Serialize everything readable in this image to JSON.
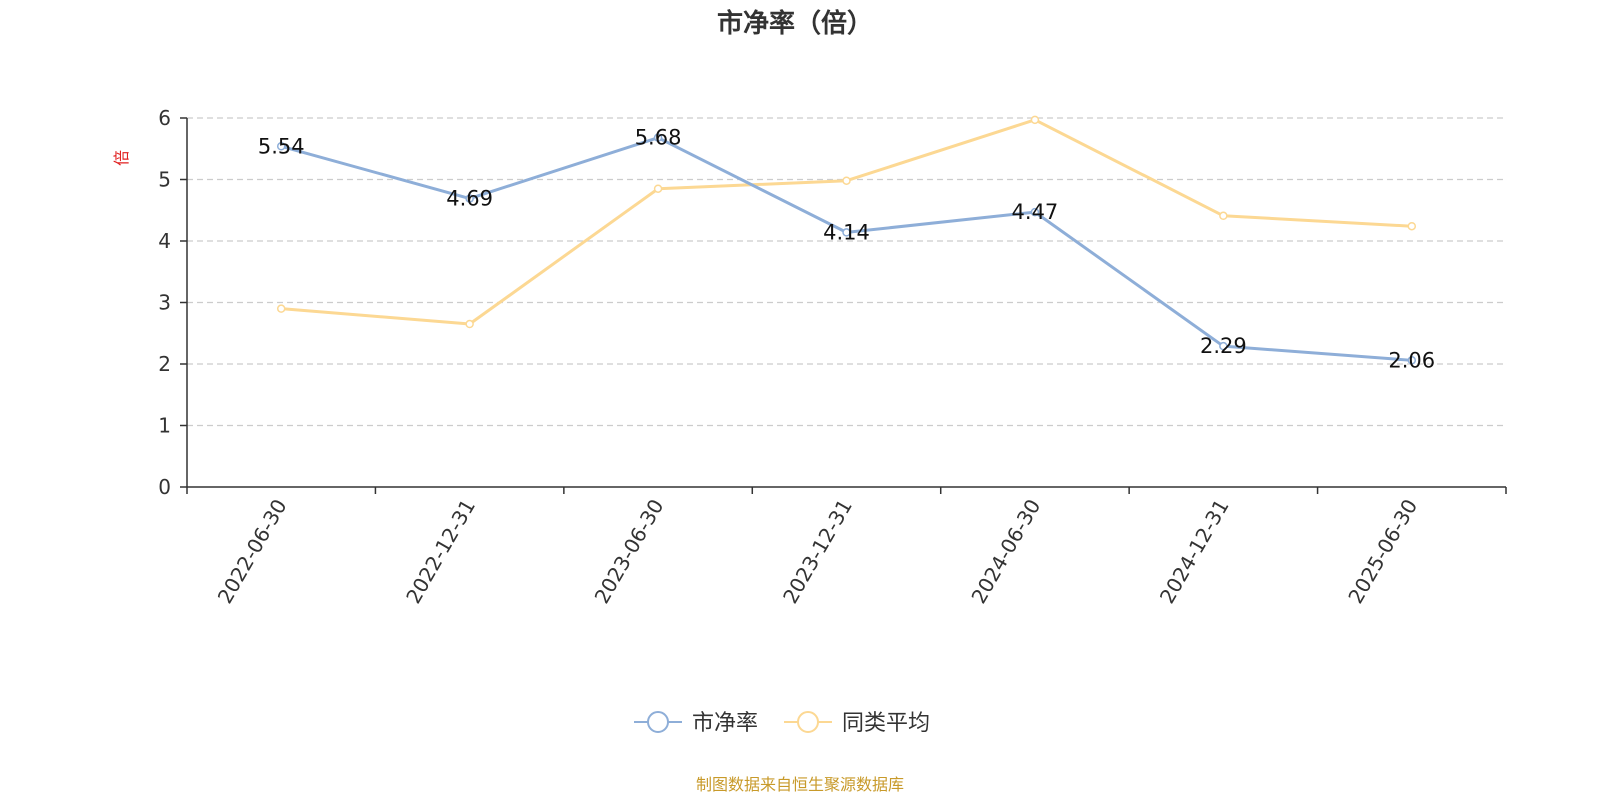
{
  "chart_data": {
    "type": "line",
    "title": "市净率（倍）",
    "ylabel": "倍",
    "ylim": [
      0,
      6
    ],
    "yticks": [
      0,
      1,
      2,
      3,
      4,
      5,
      6
    ],
    "grid": true,
    "legend_position": "bottom-center",
    "categories": [
      "2022-06-30",
      "2022-12-31",
      "2023-06-30",
      "2023-12-31",
      "2024-06-30",
      "2024-12-31",
      "2025-06-30"
    ],
    "series": [
      {
        "name": "市净率",
        "color": "#8eaed8",
        "values": [
          5.54,
          4.69,
          5.68,
          4.14,
          4.47,
          2.29,
          2.06
        ],
        "show_labels": true
      },
      {
        "name": "同类平均",
        "color": "#fcd893",
        "values": [
          2.9,
          2.65,
          4.85,
          4.98,
          5.97,
          4.41,
          4.24
        ],
        "show_labels": false
      }
    ]
  },
  "colors": {
    "unit_label": "#e02020",
    "source": "#c89a2a",
    "grid": "#cccccc",
    "axis": "#333333"
  },
  "footer": {
    "source_text": "制图数据来自恒生聚源数据库"
  }
}
